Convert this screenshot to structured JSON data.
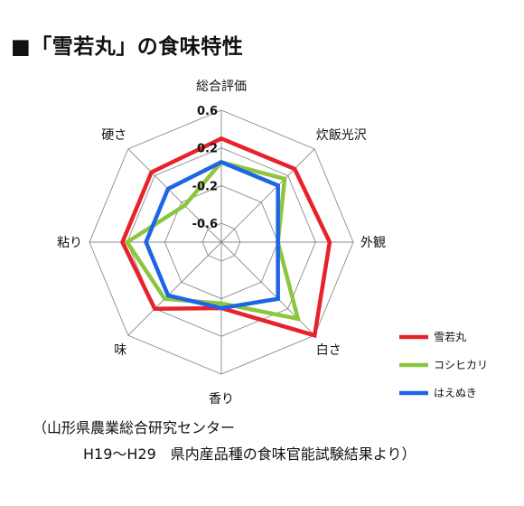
{
  "title": "■「雪若丸」の食味特性",
  "source": {
    "line1": "（山形県農業総合研究センター",
    "line2": "H19～H29　県内産品種の食味官能試験結果より）"
  },
  "chart_data": {
    "type": "radar",
    "axes": [
      "総合評価",
      "炊飯光沢",
      "外観",
      "白さ",
      "香り",
      "味",
      "粘り",
      "硬さ"
    ],
    "rlim": [
      -0.8,
      0.6
    ],
    "ticks": [
      0.6,
      0.2,
      -0.2,
      -0.6
    ],
    "tick_labels": [
      "0.6",
      "0.2",
      "-0.2",
      "-0.6"
    ],
    "grid": true,
    "legend_position": "right",
    "series": [
      {
        "name": "雪若丸",
        "color": "#e8222a",
        "values": [
          0.3,
          0.3,
          0.35,
          0.6,
          -0.1,
          0.2,
          0.25,
          0.25
        ]
      },
      {
        "name": "コシヒカリ",
        "color": "#8cc63f",
        "values": [
          0.05,
          0.15,
          -0.2,
          0.35,
          -0.15,
          0.05,
          0.2,
          -0.25
        ]
      },
      {
        "name": "はえぬき",
        "color": "#1e64e6",
        "values": [
          0.05,
          0.05,
          -0.2,
          0.05,
          -0.1,
          0.0,
          0.0,
          0.0
        ]
      }
    ]
  }
}
